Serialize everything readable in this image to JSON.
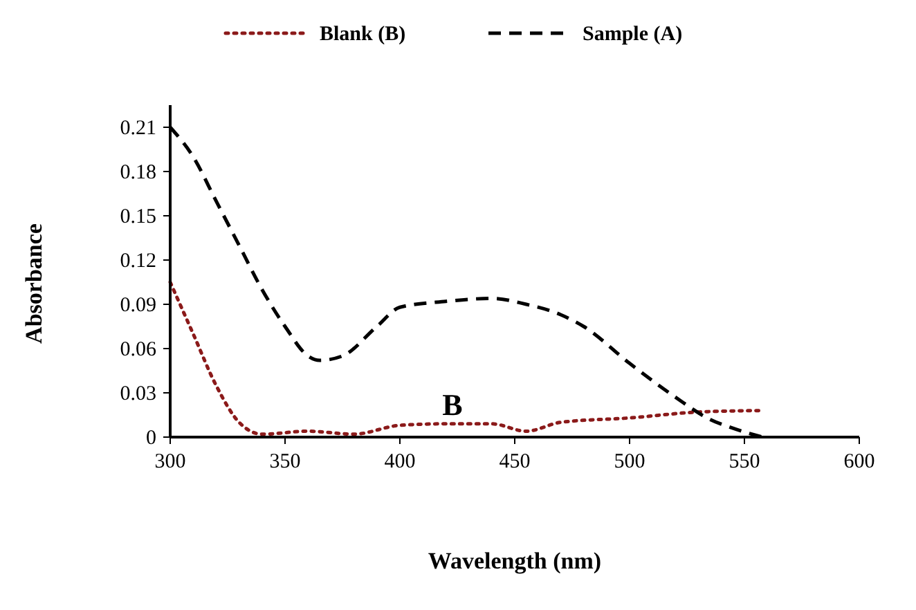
{
  "chart_data": {
    "type": "line",
    "xlabel": "Wavelength (nm)",
    "ylabel": "Absorbance",
    "xlim": [
      300,
      600
    ],
    "xticks": [
      300,
      350,
      400,
      450,
      500,
      550,
      600
    ],
    "ylim": [
      0,
      0.225
    ],
    "yticks": [
      0,
      0.03,
      0.06,
      0.09,
      0.12,
      0.15,
      0.18,
      0.21
    ],
    "legend": "top",
    "grid": false,
    "annotations": [
      "B"
    ],
    "series": [
      {
        "name": "Blank (B)",
        "color": "#8b1a1a",
        "line_style": "dotted",
        "x": [
          300,
          310,
          320,
          330,
          340,
          360,
          380,
          400,
          420,
          440,
          455,
          470,
          500,
          530,
          558
        ],
        "values": [
          0.105,
          0.07,
          0.035,
          0.01,
          0.002,
          0.004,
          0.002,
          0.008,
          0.009,
          0.009,
          0.004,
          0.01,
          0.013,
          0.017,
          0.018
        ]
      },
      {
        "name": "Sample (A)",
        "color": "#000000",
        "line_style": "dashed",
        "x": [
          300,
          310,
          320,
          330,
          340,
          350,
          360,
          365,
          375,
          390,
          400,
          420,
          440,
          455,
          470,
          480,
          500,
          520,
          535,
          545,
          558
        ],
        "values": [
          0.21,
          0.19,
          0.16,
          0.13,
          0.1,
          0.075,
          0.055,
          0.052,
          0.055,
          0.075,
          0.088,
          0.092,
          0.094,
          0.09,
          0.083,
          0.075,
          0.05,
          0.027,
          0.012,
          0.006,
          0.0
        ]
      }
    ]
  }
}
